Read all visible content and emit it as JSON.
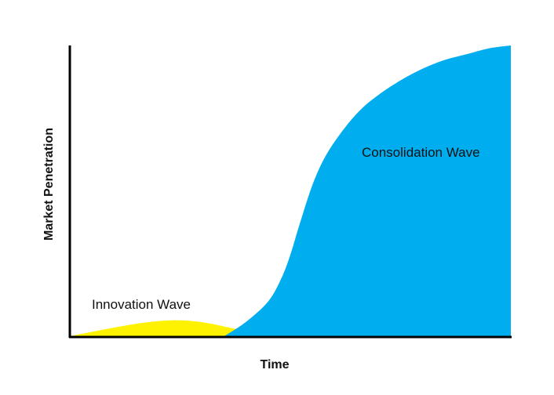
{
  "chart_data": {
    "type": "area",
    "title": "",
    "xlabel": "Time",
    "ylabel": "Market Penetration",
    "grid": false,
    "legend": "none",
    "series": [
      {
        "name": "Innovation Wave",
        "color": "#FFF200",
        "shape": "bell",
        "x": [
          0,
          0.04,
          0.08,
          0.12,
          0.16,
          0.2,
          0.24,
          0.28,
          0.32,
          0.36,
          0.4,
          0.44,
          0.48,
          0.52
        ],
        "values": [
          0.0,
          0.012,
          0.024,
          0.035,
          0.045,
          0.052,
          0.055,
          0.052,
          0.043,
          0.03,
          0.018,
          0.008,
          0.002,
          0.0
        ]
      },
      {
        "name": "Consolidation Wave",
        "color": "#00ADEF",
        "shape": "s-curve",
        "x": [
          0.35,
          0.4,
          0.45,
          0.48,
          0.5,
          0.52,
          0.55,
          0.58,
          0.62,
          0.66,
          0.7,
          0.75,
          0.8,
          0.85,
          0.9,
          0.95,
          1.0
        ],
        "values": [
          0.0,
          0.05,
          0.12,
          0.2,
          0.28,
          0.38,
          0.52,
          0.62,
          0.71,
          0.78,
          0.83,
          0.88,
          0.92,
          0.95,
          0.97,
          0.99,
          1.0
        ]
      }
    ],
    "labels": {
      "innovation": "Innovation Wave",
      "consolidation": "Consolidation Wave"
    }
  }
}
